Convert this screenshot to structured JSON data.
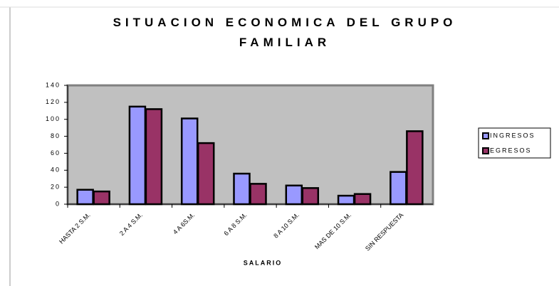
{
  "chart_data": {
    "type": "bar",
    "title": "SITUACION ECONOMICA DEL GRUPO FAMILIAR",
    "x_label": "SALARIO",
    "categories": [
      "HASTA 2 S.M.",
      "2 A 4 S.M.",
      "4 A 6S.M.",
      "6 A 8 S.M.",
      "8 A 10 S.M.",
      "MAS DE 10 S.M.",
      "SIN RESPUESTA"
    ],
    "series": [
      {
        "name": "INGRESOS",
        "color": "#9999ff",
        "values": [
          17,
          115,
          101,
          36,
          22,
          10,
          38
        ]
      },
      {
        "name": "EGRESOS",
        "color": "#993366",
        "values": [
          15,
          112,
          72,
          24,
          19,
          12,
          86
        ]
      }
    ],
    "ylim": [
      0,
      140
    ],
    "yticks": [
      0,
      20,
      40,
      60,
      80,
      100,
      120,
      140
    ],
    "legend": "right",
    "plot_background": "#c0c0c0"
  }
}
